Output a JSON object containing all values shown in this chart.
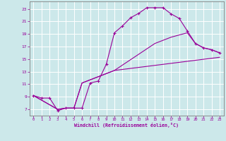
{
  "bg_color": "#cce8ea",
  "grid_color": "#ffffff",
  "line_color": "#990099",
  "spine_color": "#808080",
  "xlabel": "Windchill (Refroidissement éolien,°C)",
  "x_ticks": [
    0,
    1,
    2,
    3,
    4,
    5,
    6,
    7,
    8,
    9,
    10,
    11,
    12,
    13,
    14,
    15,
    16,
    17,
    18,
    19,
    20,
    21,
    22,
    23
  ],
  "y_ticks": [
    7,
    9,
    11,
    13,
    15,
    17,
    19,
    21,
    23
  ],
  "xlim": [
    -0.5,
    23.5
  ],
  "ylim": [
    6.0,
    24.2
  ],
  "line1_x": [
    0,
    1,
    2,
    3,
    4,
    5,
    6,
    7,
    8,
    9,
    10,
    11,
    12,
    13,
    14,
    15,
    16,
    17,
    18,
    19,
    20,
    21,
    22,
    23
  ],
  "line1_y": [
    9.2,
    8.8,
    8.8,
    6.8,
    7.2,
    7.2,
    7.2,
    11.2,
    11.5,
    14.2,
    19.2,
    20.3,
    21.6,
    22.3,
    23.2,
    23.2,
    23.2,
    22.2,
    21.5,
    19.5,
    17.5,
    16.8,
    16.5,
    16.0
  ],
  "line2_x": [
    0,
    3,
    4,
    5,
    6,
    10,
    23
  ],
  "line2_y": [
    9.2,
    7.0,
    7.2,
    7.2,
    11.2,
    13.2,
    15.3
  ],
  "line3_x": [
    0,
    3,
    4,
    5,
    6,
    10,
    15,
    17,
    19,
    20,
    21,
    22,
    23
  ],
  "line3_y": [
    9.2,
    7.0,
    7.2,
    7.2,
    11.2,
    13.2,
    17.5,
    18.5,
    19.2,
    17.5,
    16.8,
    16.5,
    16.0
  ]
}
